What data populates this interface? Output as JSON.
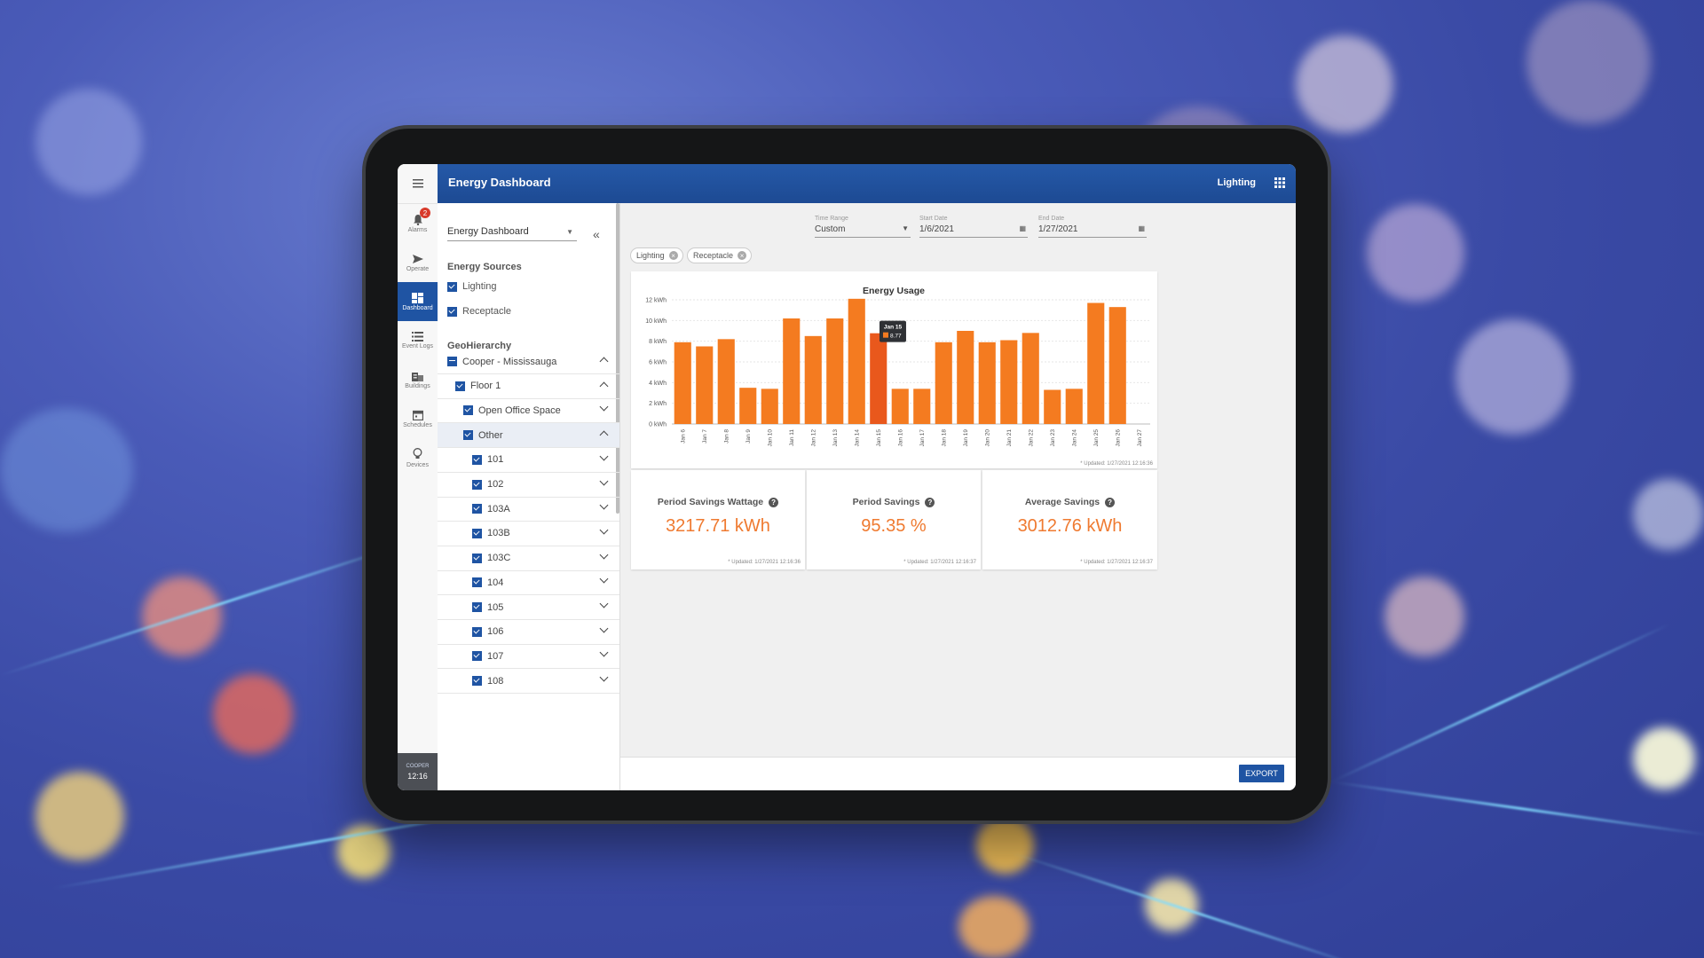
{
  "app": {
    "title": "Energy Dashboard",
    "header_right": "Lighting",
    "accent": "#1f54a3",
    "bar_color": "#f47b20",
    "highlight_color": "#e9581c"
  },
  "rail": {
    "items": [
      {
        "label": "Alarms",
        "icon": "bell-icon",
        "badge": "2"
      },
      {
        "label": "Operate",
        "icon": "send-icon"
      },
      {
        "label": "Dashboard",
        "icon": "dashboard-icon"
      },
      {
        "label": "Event Logs",
        "icon": "list-icon"
      },
      {
        "label": "Buildings",
        "icon": "building-icon"
      },
      {
        "label": "Schedules",
        "icon": "calendar-icon"
      },
      {
        "label": "Devices",
        "icon": "lightbulb-icon"
      }
    ],
    "footer_logo": "COOPER",
    "time": "12:16"
  },
  "sidebar": {
    "dashboard_select": "Energy Dashboard",
    "energy_sources_title": "Energy Sources",
    "sources": [
      "Lighting",
      "Receptacle"
    ],
    "geo_title": "GeoHierarchy",
    "tree": [
      {
        "label": "Cooper - Mississauga",
        "expanded": true
      },
      {
        "label": "Floor 1",
        "expanded": true
      },
      {
        "label": "Open Office Space",
        "expanded": false
      },
      {
        "label": "Other",
        "expanded": true
      },
      {
        "label": "101",
        "expanded": false
      },
      {
        "label": "102",
        "expanded": false
      },
      {
        "label": "103A",
        "expanded": false
      },
      {
        "label": "103B",
        "expanded": false
      },
      {
        "label": "103C",
        "expanded": false
      },
      {
        "label": "104",
        "expanded": false
      },
      {
        "label": "105",
        "expanded": false
      },
      {
        "label": "106",
        "expanded": false
      },
      {
        "label": "107",
        "expanded": false
      },
      {
        "label": "108",
        "expanded": false
      }
    ]
  },
  "filters": {
    "time_range_label": "Time Range",
    "time_range_value": "Custom",
    "start_label": "Start Date",
    "start_value": "1/6/2021",
    "end_label": "End Date",
    "end_value": "1/27/2021"
  },
  "chips": [
    "Lighting",
    "Receptacle"
  ],
  "chart_data": {
    "type": "bar",
    "title": "Energy Usage",
    "categories": [
      "Jan 6",
      "Jan 7",
      "Jan 8",
      "Jan 9",
      "Jan 10",
      "Jan 11",
      "Jan 12",
      "Jan 13",
      "Jan 14",
      "Jan 15",
      "Jan 16",
      "Jan 17",
      "Jan 18",
      "Jan 19",
      "Jan 20",
      "Jan 21",
      "Jan 22",
      "Jan 23",
      "Jan 24",
      "Jan 25",
      "Jan 26",
      "Jan 27"
    ],
    "values": [
      7.9,
      7.5,
      8.2,
      3.5,
      3.4,
      10.2,
      8.5,
      10.2,
      12.1,
      8.77,
      3.4,
      3.4,
      7.9,
      9.0,
      7.9,
      8.1,
      8.8,
      3.3,
      3.4,
      11.7,
      11.3,
      0
    ],
    "ylim": [
      0,
      12
    ],
    "yticks": [
      "0 kWh",
      "2 kWh",
      "4 kWh",
      "6 kWh",
      "8 kWh",
      "10 kWh",
      "12 kWh"
    ],
    "highlight_index": 9,
    "tooltip": {
      "title": "Jan 15",
      "value": "8.77"
    },
    "updated": "* Updated: 1/27/2021 12:16:36",
    "grid": true
  },
  "kpis": [
    {
      "title": "Period Savings Wattage",
      "value": "3217.71 kWh",
      "updated": "* Updated: 1/27/2021 12:16:36"
    },
    {
      "title": "Period Savings",
      "value": "95.35 %",
      "updated": "* Updated: 1/27/2021 12:16:37"
    },
    {
      "title": "Average Savings",
      "value": "3012.76 kWh",
      "updated": "* Updated: 1/27/2021 12:16:37"
    }
  ],
  "export_label": "EXPORT"
}
